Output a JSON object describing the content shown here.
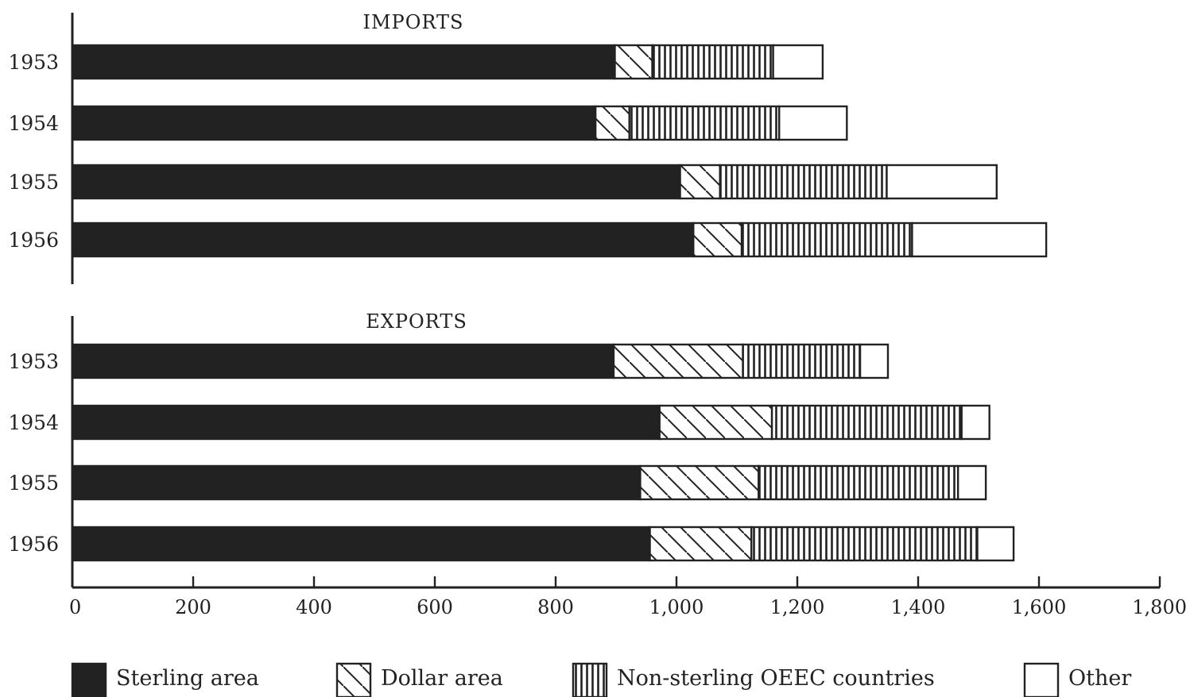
{
  "chart_data": [
    {
      "type": "bar",
      "orientation": "horizontal",
      "stacked": true,
      "title": "IMPORTS",
      "categories": [
        "1953",
        "1954",
        "1955",
        "1956"
      ],
      "series": [
        {
          "name": "Sterling area",
          "values": [
            898,
            866,
            1006,
            1028
          ]
        },
        {
          "name": "Dollar area",
          "values": [
            62,
            56,
            66,
            80
          ]
        },
        {
          "name": "Non-sterling OEEC countries",
          "values": [
            200,
            248,
            276,
            282
          ]
        },
        {
          "name": "Other",
          "values": [
            82,
            112,
            182,
            222
          ]
        }
      ],
      "xlim": [
        0,
        1800
      ]
    },
    {
      "type": "bar",
      "orientation": "horizontal",
      "stacked": true,
      "title": "EXPORTS",
      "categories": [
        "1953",
        "1954",
        "1955",
        "1956"
      ],
      "series": [
        {
          "name": "Sterling area",
          "values": [
            896,
            972,
            940,
            956
          ]
        },
        {
          "name": "Dollar area",
          "values": [
            214,
            186,
            196,
            168
          ]
        },
        {
          "name": "Non-sterling OEEC countries",
          "values": [
            194,
            314,
            330,
            374
          ]
        },
        {
          "name": "Other",
          "values": [
            46,
            46,
            46,
            60
          ]
        }
      ],
      "xlim": [
        0,
        1800
      ],
      "xticks": [
        "0",
        "200",
        "400",
        "600",
        "800",
        "1,000",
        "1,200",
        "1,400",
        "1,600",
        "1,800"
      ]
    }
  ],
  "legend": [
    {
      "name": "Sterling area",
      "pattern": "solid"
    },
    {
      "name": "Dollar area",
      "pattern": "diagonal"
    },
    {
      "name": "Non-sterling OEEC countries",
      "pattern": "vertical"
    },
    {
      "name": "Other",
      "pattern": "empty"
    }
  ],
  "colors": {
    "ink": "#222222",
    "background": "#ffffff"
  }
}
